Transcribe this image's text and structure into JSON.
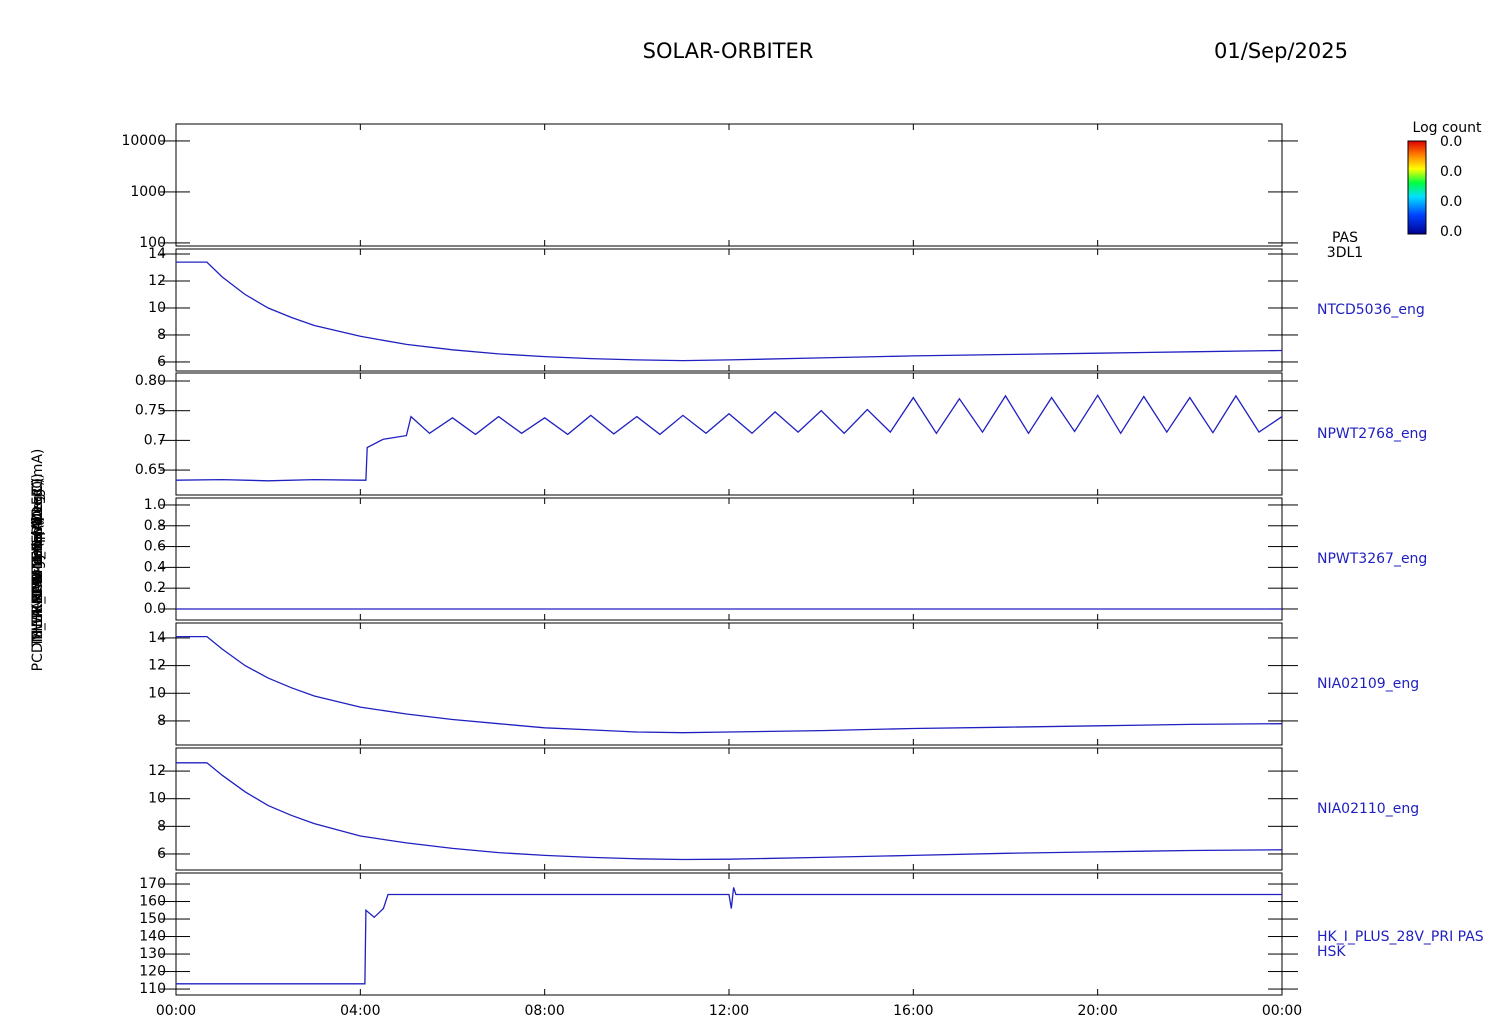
{
  "header": {
    "title": "SOLAR-ORBITER",
    "date": "01/Sep/2025"
  },
  "colorbar": {
    "title": "Log count",
    "labels": [
      "0.0",
      "0.0",
      "0.0",
      "0.0"
    ]
  },
  "chart_data": [
    {
      "type": "spectrogram",
      "ylabel": "Energy (eV)",
      "log_scale": true,
      "ylim": [
        87,
        21500
      ],
      "yticks": [
        100,
        1000,
        10000
      ],
      "right_label": [
        "PAS",
        "3DL1"
      ],
      "series": []
    },
    {
      "type": "line",
      "ylabel": "SWA-EAS Temp (DegC)",
      "ylim": [
        5.33,
        14.37
      ],
      "yticks": [
        6,
        8,
        10,
        12,
        14
      ],
      "right_label": [
        "NTCD5036_eng"
      ],
      "series": [
        {
          "color": "#2020c0",
          "x": [
            0,
            0.67,
            1,
            1.5,
            2,
            2.5,
            3,
            4,
            5,
            6,
            7,
            8,
            9,
            10,
            11,
            12,
            14,
            16,
            18,
            20,
            22,
            24
          ],
          "values": [
            13.4,
            13.4,
            12.3,
            11.0,
            10.0,
            9.3,
            8.7,
            7.9,
            7.3,
            6.9,
            6.6,
            6.4,
            6.25,
            6.15,
            6.1,
            6.15,
            6.3,
            6.45,
            6.55,
            6.65,
            6.75,
            6.85
          ]
        }
      ]
    },
    {
      "type": "line",
      "ylabel": "RPW-TDS (A)",
      "ylim": [
        0.608,
        0.8135
      ],
      "yticks": [
        0.65,
        0.7,
        0.75,
        {
          "value": 0.8,
          "label": "0.80"
        }
      ],
      "right_label": [
        "NPWT2768_eng"
      ],
      "series": [
        {
          "color": "#2020c0",
          "x": [
            0,
            1,
            2,
            3,
            4,
            4.12,
            4.15,
            4.5,
            5,
            5.1,
            5.5,
            6,
            6.5,
            7,
            7.5,
            8,
            8.5,
            9,
            9.5,
            10,
            10.5,
            11,
            11.5,
            12,
            12.5,
            13,
            13.5,
            14,
            14.5,
            15,
            15.5,
            16,
            16.5,
            17,
            17.5,
            18,
            18.5,
            19,
            19.5,
            20,
            20.5,
            21,
            21.5,
            22,
            22.5,
            23,
            23.5,
            24
          ],
          "values": [
            0.633,
            0.634,
            0.632,
            0.634,
            0.633,
            0.633,
            0.688,
            0.702,
            0.708,
            0.74,
            0.712,
            0.738,
            0.71,
            0.74,
            0.712,
            0.738,
            0.71,
            0.742,
            0.711,
            0.74,
            0.71,
            0.742,
            0.712,
            0.745,
            0.712,
            0.748,
            0.714,
            0.75,
            0.712,
            0.752,
            0.714,
            0.772,
            0.712,
            0.77,
            0.714,
            0.775,
            0.712,
            0.772,
            0.715,
            0.776,
            0.712,
            0.774,
            0.714,
            0.772,
            0.713,
            0.775,
            0.714,
            0.74
          ]
        }
      ]
    },
    {
      "type": "line",
      "ylabel": "RPW-LFR (A)",
      "ylim": [
        -0.106,
        1.067
      ],
      "yticks": [
        {
          "value": 0,
          "label": "0.0"
        },
        0.2,
        0.4,
        0.6,
        0.8,
        {
          "value": 1,
          "label": "1.0"
        }
      ],
      "right_label": [
        "NPWT3267_eng"
      ],
      "series": [
        {
          "color": "#2020c0",
          "x": [
            0,
            24
          ],
          "values": [
            0,
            0
          ]
        }
      ]
    },
    {
      "type": "line",
      "ylabel": "THERMCA4 Temp (DegC)",
      "ylim": [
        6.26,
        15.08
      ],
      "yticks": [
        8,
        10,
        12,
        14
      ],
      "right_label": [
        "NIA02109_eng"
      ],
      "series": [
        {
          "color": "#2020c0",
          "x": [
            0,
            0.67,
            1,
            1.5,
            2,
            2.5,
            3,
            4,
            5,
            6,
            7,
            8,
            9,
            10,
            11,
            12,
            14,
            16,
            18,
            20,
            22,
            24
          ],
          "values": [
            14.1,
            14.1,
            13.2,
            12.0,
            11.1,
            10.4,
            9.8,
            9.0,
            8.5,
            8.1,
            7.8,
            7.5,
            7.35,
            7.2,
            7.15,
            7.2,
            7.3,
            7.45,
            7.55,
            7.65,
            7.75,
            7.8
          ]
        }
      ]
    },
    {
      "type": "line",
      "ylabel": "THERMCB Temp (DegC)",
      "ylim": [
        4.84,
        13.67
      ],
      "yticks": [
        6,
        8,
        10,
        12
      ],
      "right_label": [
        "NIA02110_eng"
      ],
      "series": [
        {
          "color": "#2020c0",
          "x": [
            0,
            0.67,
            1,
            1.5,
            2,
            2.5,
            3,
            4,
            5,
            6,
            7,
            8,
            9,
            10,
            11,
            12,
            14,
            16,
            18,
            20,
            22,
            24
          ],
          "values": [
            12.6,
            12.6,
            11.7,
            10.5,
            9.5,
            8.8,
            8.2,
            7.3,
            6.8,
            6.4,
            6.1,
            5.9,
            5.75,
            5.65,
            5.6,
            5.62,
            5.75,
            5.9,
            6.05,
            6.15,
            6.25,
            6.3
          ]
        }
      ]
    },
    {
      "type": "line",
      "ylabel": "PCDM_HK_IMON_PERMLFR (mA)",
      "ylim": [
        106.6,
        176.3
      ],
      "yticks": [
        110,
        120,
        130,
        140,
        150,
        160,
        170
      ],
      "right_label": [
        "HK_I_PLUS_28V_PRI PAS",
        "HSK"
      ],
      "xlim": [
        0,
        24
      ],
      "xticks": [
        {
          "value": 0,
          "label": "00:00"
        },
        {
          "value": 4,
          "label": "04:00"
        },
        {
          "value": 8,
          "label": "08:00"
        },
        {
          "value": 12,
          "label": "12:00"
        },
        {
          "value": 16,
          "label": "16:00"
        },
        {
          "value": 20,
          "label": "20:00"
        },
        {
          "value": 24,
          "label": "00:00"
        }
      ],
      "series": [
        {
          "color": "#2020c0",
          "x": [
            0,
            4.1,
            4.12,
            4.3,
            4.5,
            4.6,
            12,
            12.05,
            12.1,
            12.15,
            24
          ],
          "values": [
            113,
            113,
            155,
            151,
            156,
            164,
            164,
            156,
            168,
            164,
            164
          ]
        }
      ]
    }
  ]
}
